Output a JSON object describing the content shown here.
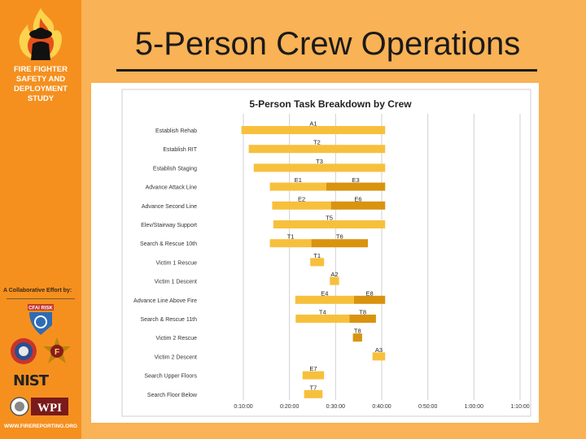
{
  "slide": {
    "title": "5-Person Crew Operations"
  },
  "sidebar": {
    "title_lines": [
      "FIRE FIGHTER",
      "SAFETY AND",
      "DEPLOYMENT",
      "STUDY"
    ],
    "collab_label": "A Collaborative Effort by:",
    "partners": [
      "CFAI RISK",
      "IAFC",
      "IAFF"
    ],
    "nist": "NIST",
    "wpi": "WPI",
    "website": "WWW.FIREREPORTING.ORG"
  },
  "colors": {
    "sidebar": "#f5901f",
    "background": "#f9b255",
    "bar_light": "#f7c03c",
    "bar_dark": "#d9930f"
  },
  "chart_data": {
    "type": "bar",
    "orientation": "horizontal-gantt",
    "title": "5-Person Task Breakdown by Crew",
    "x_ticks": [
      "0:10:00",
      "0:20:00",
      "0:30:00",
      "0:40:00",
      "0:50:00",
      "1:00:00",
      "1:10:00"
    ],
    "xlim": [
      "0:10:00",
      "1:10:00"
    ],
    "grid": true,
    "tasks": [
      {
        "name": "Establish Rehab",
        "segments": [
          {
            "label": "A1",
            "start": "0:09:35",
            "end": "0:40:45",
            "shade": "light"
          }
        ]
      },
      {
        "name": "Establish RIT",
        "segments": [
          {
            "label": "T2",
            "start": "0:11:10",
            "end": "0:40:45",
            "shade": "light"
          }
        ]
      },
      {
        "name": "Establish Staging",
        "segments": [
          {
            "label": "T3",
            "start": "0:12:15",
            "end": "0:40:45",
            "shade": "light"
          }
        ]
      },
      {
        "name": "Advance Attack Line",
        "segments": [
          {
            "label": "E1",
            "start": "0:15:45",
            "end": "0:28:00",
            "shade": "light"
          },
          {
            "label": "E3",
            "start": "0:28:00",
            "end": "0:40:45",
            "shade": "dark"
          }
        ]
      },
      {
        "name": "Advance Second Line",
        "segments": [
          {
            "label": "E2",
            "start": "0:16:15",
            "end": "0:29:00",
            "shade": "light"
          },
          {
            "label": "E6",
            "start": "0:29:00",
            "end": "0:40:45",
            "shade": "dark"
          }
        ]
      },
      {
        "name": "Elev/Stairway Support",
        "segments": [
          {
            "label": "T5",
            "start": "0:16:30",
            "end": "0:40:45",
            "shade": "light"
          }
        ]
      },
      {
        "name": "Search & Rescue 10th",
        "segments": [
          {
            "label": "T1",
            "start": "0:15:45",
            "end": "0:24:45",
            "shade": "light"
          },
          {
            "label": "T6",
            "start": "0:24:45",
            "end": "0:37:00",
            "shade": "dark"
          }
        ]
      },
      {
        "name": "Victim 1 Rescue",
        "segments": [
          {
            "label": "T1",
            "start": "0:24:30",
            "end": "0:27:30",
            "shade": "light"
          }
        ]
      },
      {
        "name": "Victim 1 Descent",
        "segments": [
          {
            "label": "A2",
            "start": "0:28:45",
            "end": "0:30:45",
            "shade": "light"
          }
        ]
      },
      {
        "name": "Advance Line Above Fire",
        "segments": [
          {
            "label": "E4",
            "start": "0:21:15",
            "end": "0:34:00",
            "shade": "light"
          },
          {
            "label": "E8",
            "start": "0:34:00",
            "end": "0:40:45",
            "shade": "dark"
          }
        ]
      },
      {
        "name": "Search & Rescue 11th",
        "segments": [
          {
            "label": "T4",
            "start": "0:21:20",
            "end": "0:33:00",
            "shade": "light"
          },
          {
            "label": "T8",
            "start": "0:33:00",
            "end": "0:38:45",
            "shade": "dark"
          }
        ]
      },
      {
        "name": "Victim 2 Rescue",
        "segments": [
          {
            "label": "T8",
            "start": "0:33:45",
            "end": "0:35:45",
            "shade": "dark"
          }
        ]
      },
      {
        "name": "Victim 2 Descent",
        "segments": [
          {
            "label": "A3",
            "start": "0:38:00",
            "end": "0:40:45",
            "shade": "light"
          }
        ]
      },
      {
        "name": "Search Upper Floors",
        "segments": [
          {
            "label": "E7",
            "start": "0:22:50",
            "end": "0:27:30",
            "shade": "light"
          }
        ]
      },
      {
        "name": "Search Floor Below",
        "segments": [
          {
            "label": "T7",
            "start": "0:23:10",
            "end": "0:27:10",
            "shade": "light"
          }
        ]
      }
    ]
  }
}
